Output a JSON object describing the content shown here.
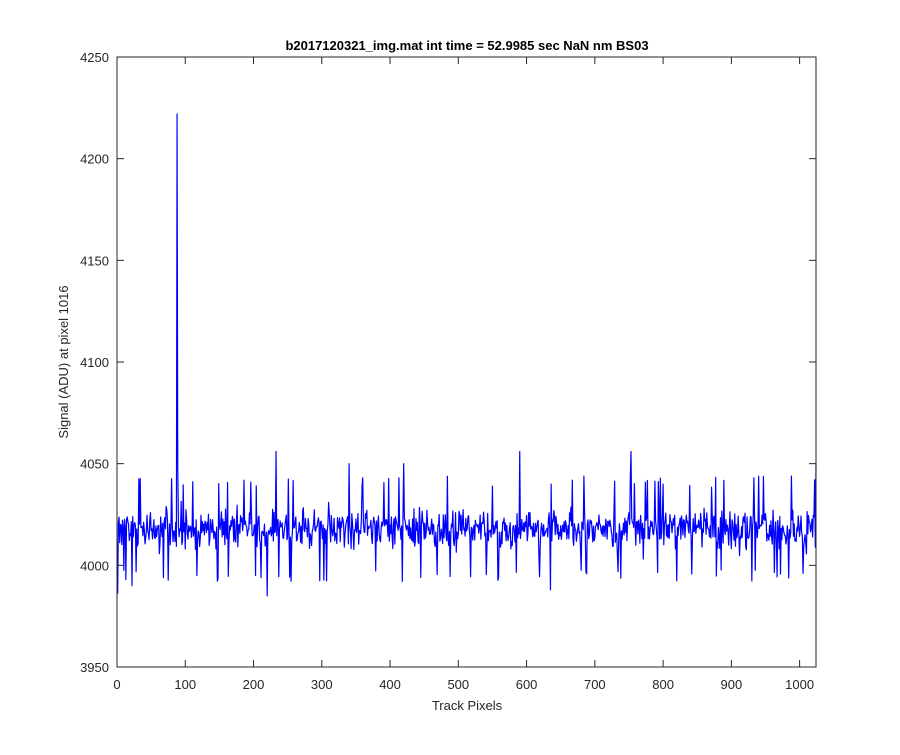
{
  "chart_data": {
    "type": "line",
    "title": "b2017120321_img.mat int time = 52.9985 sec  NaN nm BS03",
    "xlabel": "Track Pixels",
    "ylabel": "Signal (ADU) at pixel 1016",
    "xlim": [
      0,
      1024
    ],
    "ylim": [
      3950,
      4250
    ],
    "xticks": [
      0,
      100,
      200,
      300,
      400,
      500,
      600,
      700,
      800,
      900,
      1000
    ],
    "yticks": [
      3950,
      4000,
      4050,
      4100,
      4150,
      4200,
      4250
    ],
    "grid": false,
    "legend": "none",
    "line_color": "#0000ff",
    "series": [
      {
        "noise": {
          "n_points": 1024,
          "baseline": 4018,
          "lower_envelope_approx": 4000,
          "upper_envelope_approx": 4040
        },
        "notable_points": [
          {
            "x": 1,
            "y": 3986
          },
          {
            "x": 22,
            "y": 3990
          },
          {
            "x": 88,
            "y": 4222
          },
          {
            "x": 89,
            "y": 4050
          },
          {
            "x": 220,
            "y": 3985
          },
          {
            "x": 233,
            "y": 4056
          },
          {
            "x": 340,
            "y": 4050
          },
          {
            "x": 420,
            "y": 4050
          },
          {
            "x": 590,
            "y": 4056
          },
          {
            "x": 635,
            "y": 3988
          },
          {
            "x": 753,
            "y": 4056
          },
          {
            "x": 1024,
            "y": 4050
          }
        ]
      }
    ]
  }
}
